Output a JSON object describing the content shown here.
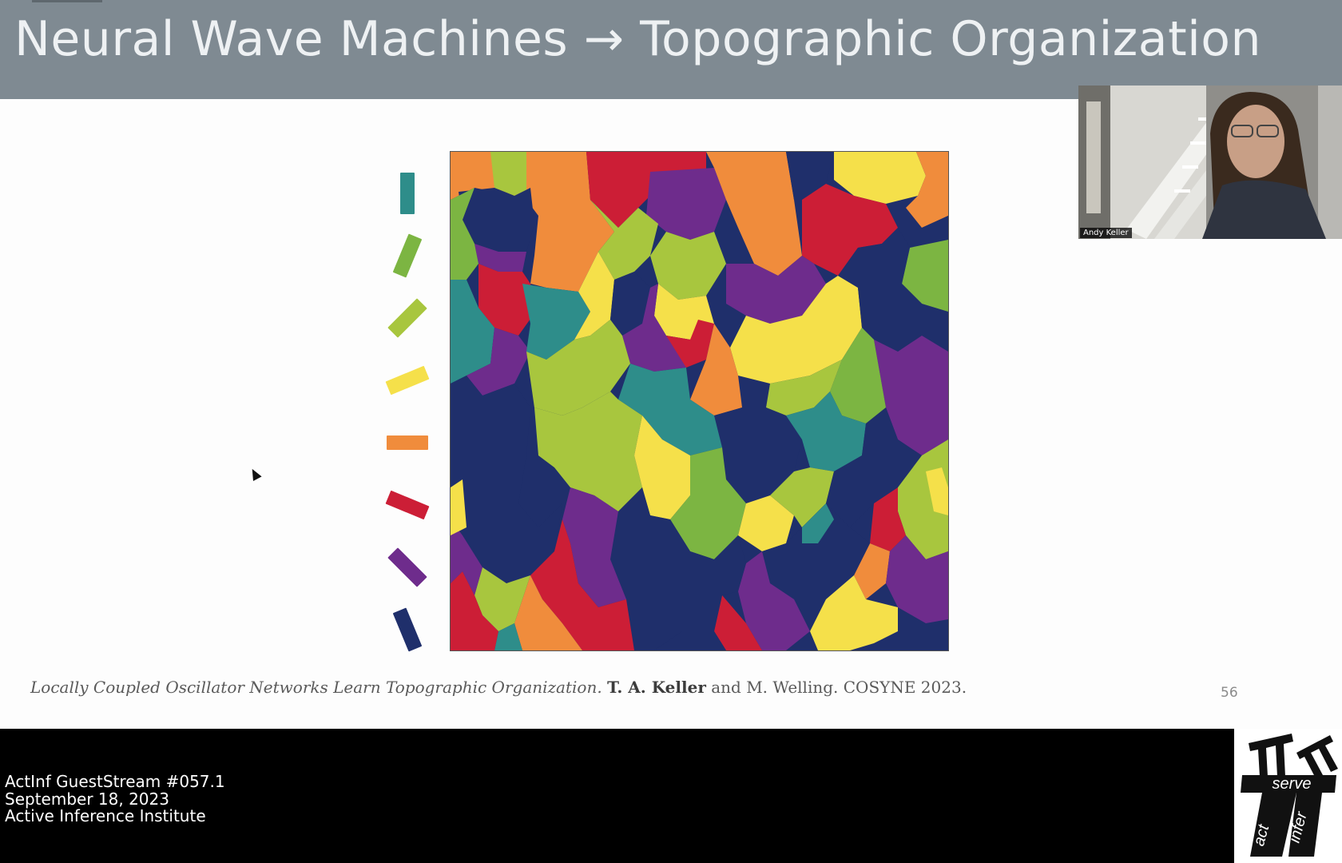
{
  "slide": {
    "title": "Neural Wave Machines → Topographic Organization",
    "page_number": "56",
    "citation": {
      "title_italic": "Locally Coupled Oscillator Networks Learn Topographic Organization.",
      "author_bold": "T. A. Keller",
      "rest": "and M. Welling. COSYNE 2023."
    },
    "orientation_legend": [
      {
        "angle_deg": 0,
        "color": "#2e8d8a"
      },
      {
        "angle_deg": 22.5,
        "color": "#7cb542"
      },
      {
        "angle_deg": 45,
        "color": "#a8c63e"
      },
      {
        "angle_deg": 67.5,
        "color": "#f5e04a"
      },
      {
        "angle_deg": 90,
        "color": "#f08c3c"
      },
      {
        "angle_deg": 112.5,
        "color": "#cc1e36"
      },
      {
        "angle_deg": 135,
        "color": "#6e2c8c"
      },
      {
        "angle_deg": 157.5,
        "color": "#1f2f6b"
      }
    ],
    "map_colors": {
      "teal": "#2e8d8a",
      "green": "#7cb542",
      "lime": "#a8c63e",
      "yellow": "#f5e04a",
      "orange": "#f08c3c",
      "red": "#cc1e36",
      "purple": "#6e2c8c",
      "navy": "#1f2f6b"
    }
  },
  "webcam": {
    "participant_name": "Andy Keller"
  },
  "stream_info": {
    "line1": "ActInf GuestStream #057.1",
    "line2": "September 18, 2023",
    "line3": "Active Inference Institute"
  },
  "logo": {
    "word_serve": "serve",
    "word_act": "act",
    "word_infer": "infer"
  },
  "colors": {
    "title_bar": "#7f8a92",
    "bottom_bar": "#000000",
    "slide_background": "#fdfdfd"
  }
}
